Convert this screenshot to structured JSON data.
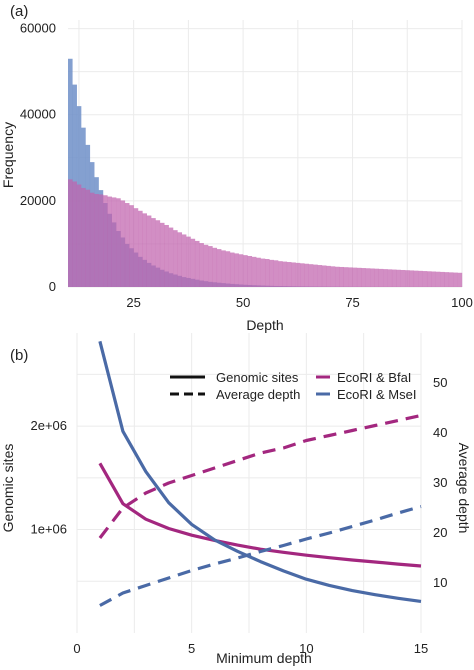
{
  "chart_data": [
    {
      "panel_label": "(a)",
      "type": "bar",
      "subtype": "overlapping histogram",
      "xlabel": "Depth",
      "ylabel": "Frequency",
      "xlim": [
        10,
        100
      ],
      "ylim": [
        0,
        62000
      ],
      "xticks": [
        25,
        50,
        75,
        100
      ],
      "yticks": [
        0,
        20000,
        40000,
        60000
      ],
      "ytick_labels": [
        "0",
        "20000",
        "40000",
        "60000"
      ],
      "grid": true,
      "legend": "none",
      "bin_width": 1,
      "series": [
        {
          "color": "#6f8fc8",
          "start": 10,
          "values": [
            53000,
            47000,
            42000,
            37000,
            33000,
            29000,
            25500,
            22500,
            19500,
            17000,
            15000,
            13000,
            11500,
            10000,
            9000,
            8000,
            7000,
            6300,
            5600,
            5000,
            4500,
            4000,
            3600,
            3200,
            2900,
            2600,
            2300,
            2100,
            1900,
            1700,
            1500,
            1350,
            1200,
            1100,
            1000,
            900,
            800,
            720,
            650,
            580,
            520,
            470,
            420,
            380,
            340,
            300,
            270,
            240,
            220,
            200,
            180,
            160,
            140,
            125,
            110,
            100,
            90,
            80,
            72,
            65,
            58,
            52,
            46,
            41,
            37,
            33,
            30,
            27,
            24,
            21,
            19,
            17,
            15,
            13,
            12,
            11,
            10,
            9,
            8,
            7,
            6,
            5,
            5,
            4,
            4,
            3,
            3,
            2,
            2,
            2
          ]
        },
        {
          "color": "#c062ad",
          "start": 10,
          "values": [
            25000,
            24500,
            23800,
            23000,
            22600,
            21900,
            21600,
            21500,
            21300,
            21000,
            20800,
            20600,
            20100,
            19500,
            19000,
            18300,
            17700,
            17100,
            16600,
            16000,
            15500,
            14900,
            14400,
            13800,
            13200,
            12700,
            12200,
            11700,
            11200,
            10700,
            10200,
            9800,
            9500,
            9100,
            8800,
            8500,
            8300,
            8000,
            7800,
            7600,
            7400,
            7200,
            7000,
            6800,
            6600,
            6500,
            6300,
            6200,
            6000,
            5900,
            5800,
            5700,
            5600,
            5500,
            5400,
            5300,
            5200,
            5100,
            5000,
            4900,
            4800,
            4700,
            4650,
            4600,
            4550,
            4500,
            4450,
            4400,
            4350,
            4300,
            4250,
            4200,
            4150,
            4100,
            4050,
            4000,
            3950,
            3900,
            3850,
            3800,
            3750,
            3700,
            3650,
            3600,
            3550,
            3500,
            3450,
            3400,
            3350,
            3300
          ]
        }
      ]
    },
    {
      "panel_label": "(b)",
      "type": "line",
      "xlabel": "Minimum depth",
      "ylabel": "Genomic sites",
      "ylabel_right": "Average depth",
      "xlim": [
        0,
        15
      ],
      "ylim": [
        0,
        2900000
      ],
      "ylim_right": [
        0,
        60
      ],
      "xticks": [
        0,
        5,
        10,
        15
      ],
      "yticks": [
        1000000,
        2000000
      ],
      "ytick_labels": [
        "1e+06",
        "2e+06"
      ],
      "yticks_right": [
        10,
        20,
        30,
        40,
        50
      ],
      "grid": true,
      "legend": {
        "linetype_entries": [
          "Genomic sites",
          "Average depth"
        ],
        "color_entries": [
          {
            "label": "EcoRI & BfaI",
            "color": "#a3277f"
          },
          {
            "label": "EcoRI & MseI",
            "color": "#4a6aa6"
          }
        ]
      },
      "x": [
        1,
        2,
        3,
        4,
        5,
        6,
        7,
        8,
        9,
        10,
        11,
        12,
        13,
        14,
        15
      ],
      "series": [
        {
          "name": "EcoRI & BfaI",
          "measure": "Genomic sites",
          "axis": "left",
          "dash": "solid",
          "color": "#a3277f",
          "values": [
            1640000,
            1250000,
            1100000,
            1010000,
            945000,
            895000,
            850000,
            810000,
            780000,
            752000,
            728000,
            706000,
            686000,
            666000,
            648000
          ]
        },
        {
          "name": "EcoRI & MseI",
          "measure": "Genomic sites",
          "axis": "left",
          "dash": "solid",
          "color": "#4a6aa6",
          "values": [
            2820000,
            1950000,
            1560000,
            1260000,
            1050000,
            900000,
            790000,
            690000,
            600000,
            520000,
            460000,
            410000,
            370000,
            335000,
            305000
          ]
        },
        {
          "name": "EcoRI & BfaI",
          "measure": "Average depth",
          "axis": "right",
          "dash": "dashed",
          "color": "#a3277f",
          "values": [
            19,
            25,
            28,
            30,
            31.5,
            33,
            34.5,
            36,
            37,
            38.5,
            39.5,
            40.5,
            41.5,
            42.5,
            43.5
          ]
        },
        {
          "name": "EcoRI & MseI",
          "measure": "Average depth",
          "axis": "right",
          "dash": "dashed",
          "color": "#4a6aa6",
          "values": [
            5.5,
            8,
            9.5,
            11,
            12.5,
            13.8,
            15,
            16.3,
            17.5,
            18.8,
            20,
            21.3,
            22.6,
            24,
            25.3
          ]
        }
      ]
    }
  ]
}
